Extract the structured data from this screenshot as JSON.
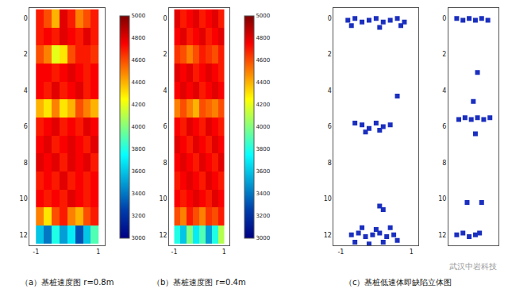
{
  "chart_data": [
    {
      "type": "heatmap",
      "title": "（a）基桩速度图 r=0.8m",
      "x": [
        -0.875,
        -0.625,
        -0.375,
        -0.125,
        0.125,
        0.375,
        0.625,
        0.875
      ],
      "y": [
        0,
        1,
        2,
        3,
        4,
        5,
        6,
        7,
        8,
        9,
        10,
        11,
        12
      ],
      "z": [
        [
          4700,
          4600,
          4400,
          4800,
          4700,
          4500,
          4600,
          4700
        ],
        [
          4700,
          4750,
          4700,
          4800,
          4750,
          4700,
          4800,
          4700
        ],
        [
          4600,
          4500,
          4200,
          4300,
          4600,
          4700,
          4700,
          4650
        ],
        [
          4750,
          4750,
          4700,
          4750,
          4800,
          4750,
          4700,
          4750
        ],
        [
          4750,
          4700,
          4800,
          4700,
          4750,
          4800,
          4700,
          4750
        ],
        [
          4400,
          4300,
          4500,
          4300,
          4400,
          4600,
          4500,
          4400
        ],
        [
          4700,
          4750,
          4800,
          4700,
          4750,
          4700,
          4800,
          4750
        ],
        [
          4750,
          4800,
          4700,
          4750,
          4800,
          4750,
          4700,
          4800
        ],
        [
          4800,
          4750,
          4800,
          4700,
          4800,
          4750,
          4800,
          4700
        ],
        [
          4700,
          4750,
          4700,
          4800,
          4700,
          4750,
          4700,
          4750
        ],
        [
          4750,
          4700,
          4750,
          4700,
          4800,
          4750,
          4700,
          4750
        ],
        [
          4500,
          4300,
          4600,
          4700,
          4500,
          4400,
          4600,
          4700
        ],
        [
          3600,
          3400,
          3800,
          3500,
          3700,
          3300,
          3600,
          3900
        ]
      ],
      "zlim": [
        3000,
        5000
      ],
      "zticks": [
        3000,
        3200,
        3400,
        3600,
        3800,
        4000,
        4200,
        4400,
        4600,
        4800,
        5000
      ],
      "xlim": [
        -1.2,
        1.2
      ],
      "xticks": [
        -1,
        1
      ],
      "ylim": [
        12.6,
        -0.6
      ],
      "yticks": [
        0,
        2,
        4,
        6,
        8,
        10,
        12
      ]
    },
    {
      "type": "heatmap",
      "title": "（b）基桩速度图 r=0.4m",
      "x": [
        -0.875,
        -0.625,
        -0.375,
        -0.125,
        0.125,
        0.375,
        0.625,
        0.875
      ],
      "y": [
        0,
        1,
        2,
        3,
        4,
        5,
        6,
        7,
        8,
        9,
        10,
        11,
        12
      ],
      "z": [
        [
          4800,
          4700,
          4750,
          4800,
          4700,
          4750,
          4800,
          4700
        ],
        [
          4750,
          4800,
          4700,
          4750,
          4800,
          4700,
          4750,
          4800
        ],
        [
          4650,
          4600,
          4500,
          4600,
          4700,
          4650,
          4600,
          4700
        ],
        [
          4800,
          4750,
          4800,
          4700,
          4750,
          4800,
          4750,
          4700
        ],
        [
          4750,
          4800,
          4750,
          4800,
          4700,
          4750,
          4800,
          4750
        ],
        [
          4500,
          4600,
          4500,
          4400,
          4600,
          4550,
          4500,
          4600
        ],
        [
          4750,
          4700,
          4800,
          4750,
          4700,
          4800,
          4750,
          4700
        ],
        [
          4800,
          4750,
          4700,
          4800,
          4750,
          4700,
          4800,
          4750
        ],
        [
          4750,
          4800,
          4750,
          4700,
          4800,
          4750,
          4700,
          4800
        ],
        [
          4700,
          4750,
          4800,
          4750,
          4700,
          4800,
          4750,
          4700
        ],
        [
          4750,
          4700,
          4750,
          4800,
          4750,
          4700,
          4800,
          4750
        ],
        [
          4600,
          4500,
          4700,
          4600,
          4500,
          4650,
          4600,
          4700
        ],
        [
          3800,
          3600,
          4000,
          3700,
          3900,
          3500,
          3800,
          4100
        ]
      ],
      "zlim": [
        3000,
        5000
      ],
      "zticks": [
        3000,
        3200,
        3400,
        3600,
        3800,
        4000,
        4200,
        4400,
        4600,
        4800,
        5000
      ],
      "xlim": [
        -1.2,
        1.2
      ],
      "xticks": [
        -1,
        1
      ],
      "ylim": [
        12.6,
        -0.6
      ],
      "yticks": [
        0,
        2,
        4,
        6,
        8,
        10,
        12
      ]
    },
    {
      "type": "scatter",
      "title": "（c）基桩低速体即缺陷立体图",
      "color": "#1a2fbf",
      "x": [
        -0.8,
        -0.6,
        -0.4,
        -0.2,
        0,
        0.2,
        0.4,
        0.6,
        0.8,
        -0.7,
        0.1,
        0.7,
        -0.6,
        -0.4,
        -0.2,
        0,
        0.2,
        0.4,
        -0.3,
        0.1,
        0.6,
        0.1,
        0.2,
        -0.7,
        -0.5,
        -0.3,
        -0.1,
        0.1,
        0.3,
        0.5,
        -0.6,
        -0.2,
        0.2,
        0.6,
        -0.4,
        0,
        0.4
      ],
      "y": [
        0.1,
        0,
        0.2,
        0.1,
        0,
        0.2,
        0.1,
        0,
        0.2,
        0.4,
        0.5,
        0.4,
        5.8,
        5.9,
        6.1,
        5.8,
        6,
        5.9,
        6.3,
        6.2,
        4.3,
        10.4,
        10.6,
        12,
        11.9,
        12.1,
        12,
        11.9,
        12.1,
        12,
        12.4,
        12.5,
        12.4,
        12.3,
        11.6,
        11.7,
        11.6
      ],
      "xlim": [
        -1.2,
        1.2
      ],
      "xticks": [
        -1,
        1
      ],
      "ylim": [
        12.6,
        -0.6
      ],
      "yticks": [
        0,
        2,
        4,
        6,
        8,
        10,
        12
      ]
    },
    {
      "type": "scatter",
      "color": "#1a2fbf",
      "tick_labels": "y",
      "x": [
        -0.8,
        -0.5,
        -0.2,
        0.1,
        0.4,
        0.7,
        0.2,
        0.0,
        -0.7,
        -0.4,
        -0.1,
        0.2,
        0.5,
        0.8,
        0.1,
        -0.3,
        0.4,
        -0.8,
        -0.5,
        -0.2,
        0.1,
        0.3
      ],
      "y": [
        0,
        0.1,
        0,
        0.1,
        0,
        0.1,
        3,
        4.6,
        5.6,
        5.5,
        5.6,
        5.5,
        5.6,
        5.5,
        6.4,
        10.2,
        10.2,
        12,
        11.9,
        12.1,
        12,
        11.9
      ],
      "xlim": [
        -1.2,
        1.2
      ],
      "ylim": [
        12.6,
        -0.6
      ],
      "yticks": [
        0,
        2,
        4,
        6,
        8,
        10,
        12
      ]
    }
  ],
  "watermark": "武汉中岩科技"
}
